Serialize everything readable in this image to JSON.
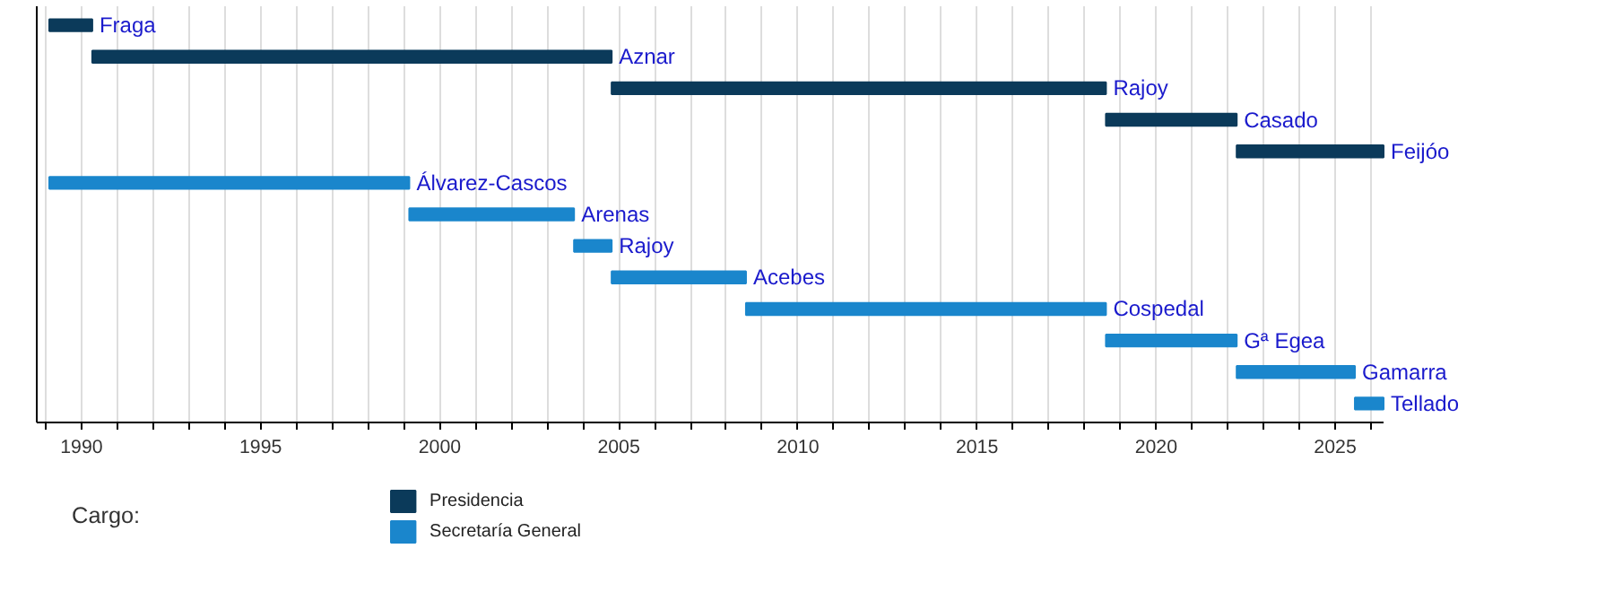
{
  "chart_data": {
    "type": "bar",
    "orientation": "horizontal",
    "legend_title": "Cargo:",
    "legend": "bottom left",
    "grid": "x",
    "tick_labels": "x",
    "categories": [
      "Fraga",
      "Aznar",
      "Rajoy",
      "Casado",
      "Feijóo",
      "Álvarez-Cascos",
      "Arenas",
      "Rajoy",
      "Acebes",
      "Cospedal",
      "Gª Egea",
      "Gamarra",
      "Tellado"
    ],
    "xlim": [
      1988.75,
      2026.35
    ],
    "xticks": [
      {
        "value": 1989,
        "label": null
      },
      1990,
      {
        "value": 1991,
        "label": null
      },
      {
        "value": 1992,
        "label": null
      },
      {
        "value": 1993,
        "label": null
      },
      {
        "value": 1994,
        "label": null
      },
      1995,
      {
        "value": 1996,
        "label": null
      },
      {
        "value": 1997,
        "label": null
      },
      {
        "value": 1998,
        "label": null
      },
      {
        "value": 1999,
        "label": null
      },
      2000,
      {
        "value": 2001,
        "label": null
      },
      {
        "value": 2002,
        "label": null
      },
      {
        "value": 2003,
        "label": null
      },
      {
        "value": 2004,
        "label": null
      },
      2005,
      {
        "value": 2006,
        "label": null
      },
      {
        "value": 2007,
        "label": null
      },
      {
        "value": 2008,
        "label": null
      },
      {
        "value": 2009,
        "label": null
      },
      2010,
      {
        "value": 2011,
        "label": null
      },
      {
        "value": 2012,
        "label": null
      },
      {
        "value": 2013,
        "label": null
      },
      {
        "value": 2014,
        "label": null
      },
      2015,
      {
        "value": 2016,
        "label": null
      },
      {
        "value": 2017,
        "label": null
      },
      {
        "value": 2018,
        "label": null
      },
      {
        "value": 2019,
        "label": null
      },
      2020,
      {
        "value": 2021,
        "label": null
      },
      {
        "value": 2022,
        "label": null
      },
      {
        "value": 2023,
        "label": null
      },
      {
        "value": 2024,
        "label": null
      },
      2025,
      {
        "value": 2026,
        "label": null
      }
    ],
    "series": [
      {
        "name": "Presidencia",
        "color": "#0b3a5a",
        "base": [
          1989.1,
          1990.3,
          2004.8,
          2018.6,
          2022.25,
          null,
          null,
          null,
          null,
          null,
          null,
          null,
          null
        ],
        "values": [
          1.2,
          14.5,
          13.8,
          3.65,
          4.1,
          null,
          null,
          null,
          null,
          null,
          null,
          null,
          null
        ]
      },
      {
        "name": "Secretaría General",
        "color": "#1a86cc",
        "base": [
          null,
          null,
          null,
          null,
          null,
          1989.1,
          1999.15,
          2003.75,
          2004.8,
          2008.55,
          2018.6,
          2022.25,
          2025.55
        ],
        "values": [
          null,
          null,
          null,
          null,
          null,
          10.05,
          4.6,
          1.05,
          3.75,
          10.05,
          3.65,
          3.3,
          0.8
        ]
      }
    ]
  }
}
